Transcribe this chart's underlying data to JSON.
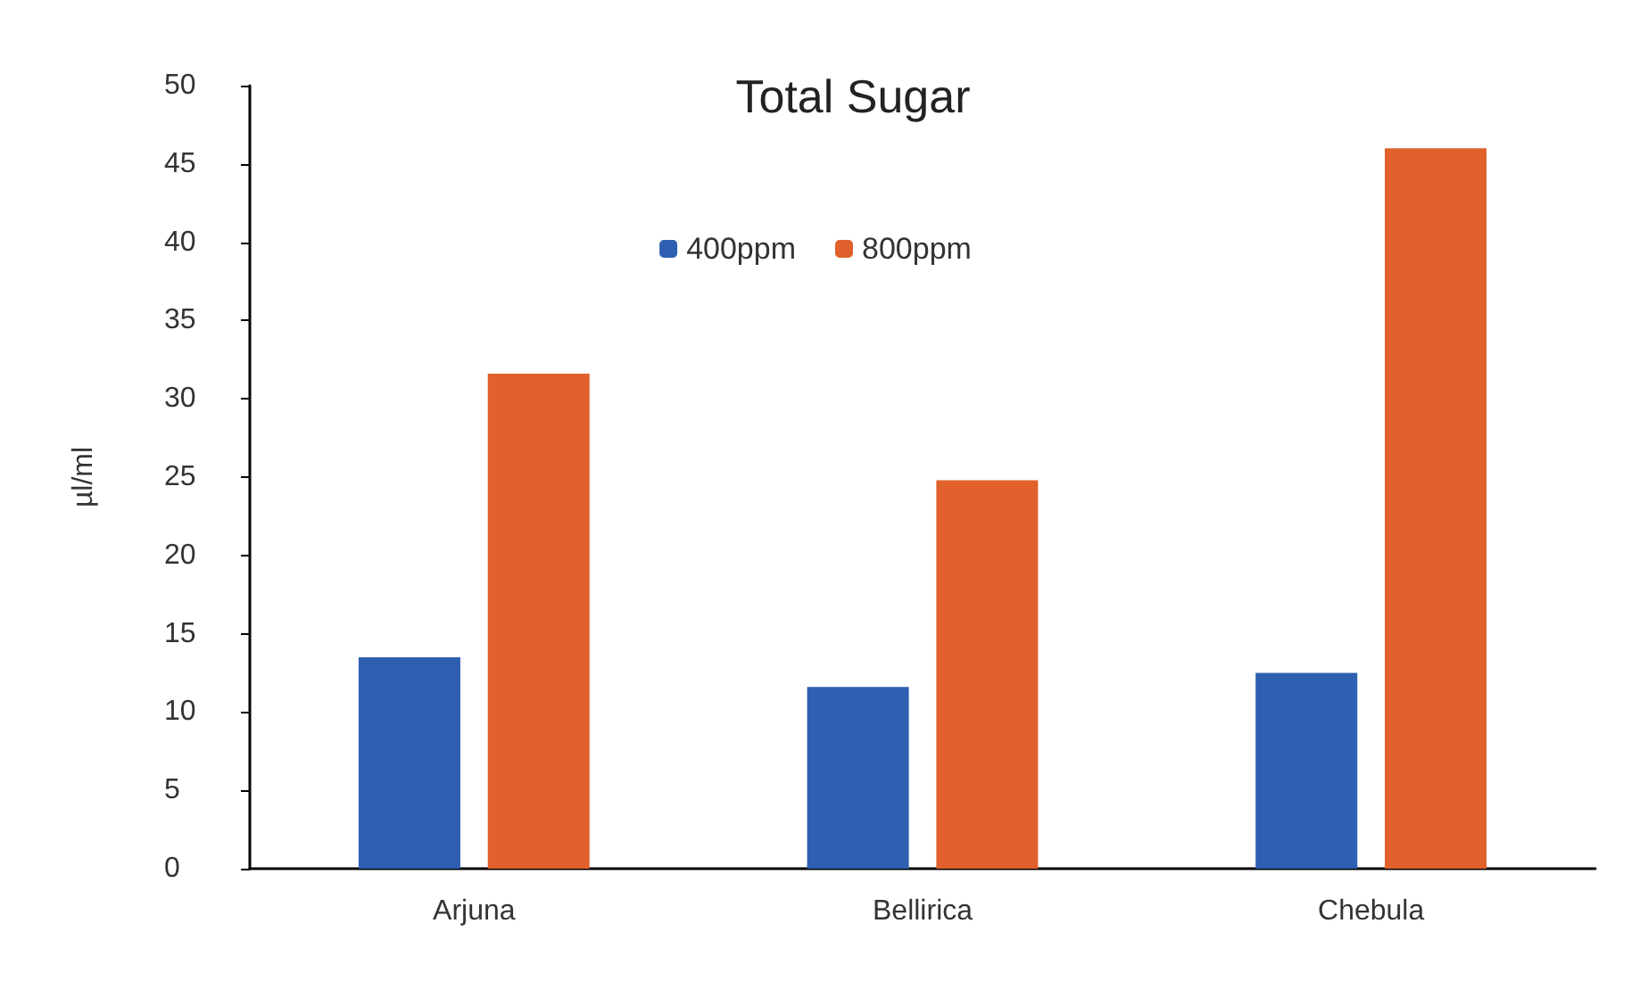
{
  "chart_data": {
    "type": "bar",
    "title": "Total Sugar",
    "ylabel": "µl/ml",
    "categories": [
      "Arjuna",
      "Bellirica",
      "Chebula"
    ],
    "series": [
      {
        "name": "400ppm",
        "color": "#2e5fb0",
        "values": [
          13.5,
          11.6,
          12.5
        ]
      },
      {
        "name": "800ppm",
        "color": "#e0612b",
        "values": [
          31.6,
          24.8,
          46.0
        ]
      }
    ],
    "ylim": [
      0,
      50
    ],
    "yticks": [
      0,
      5,
      10,
      15,
      20,
      25,
      30,
      35,
      40,
      45,
      50
    ],
    "grid": false,
    "legend": "top"
  }
}
